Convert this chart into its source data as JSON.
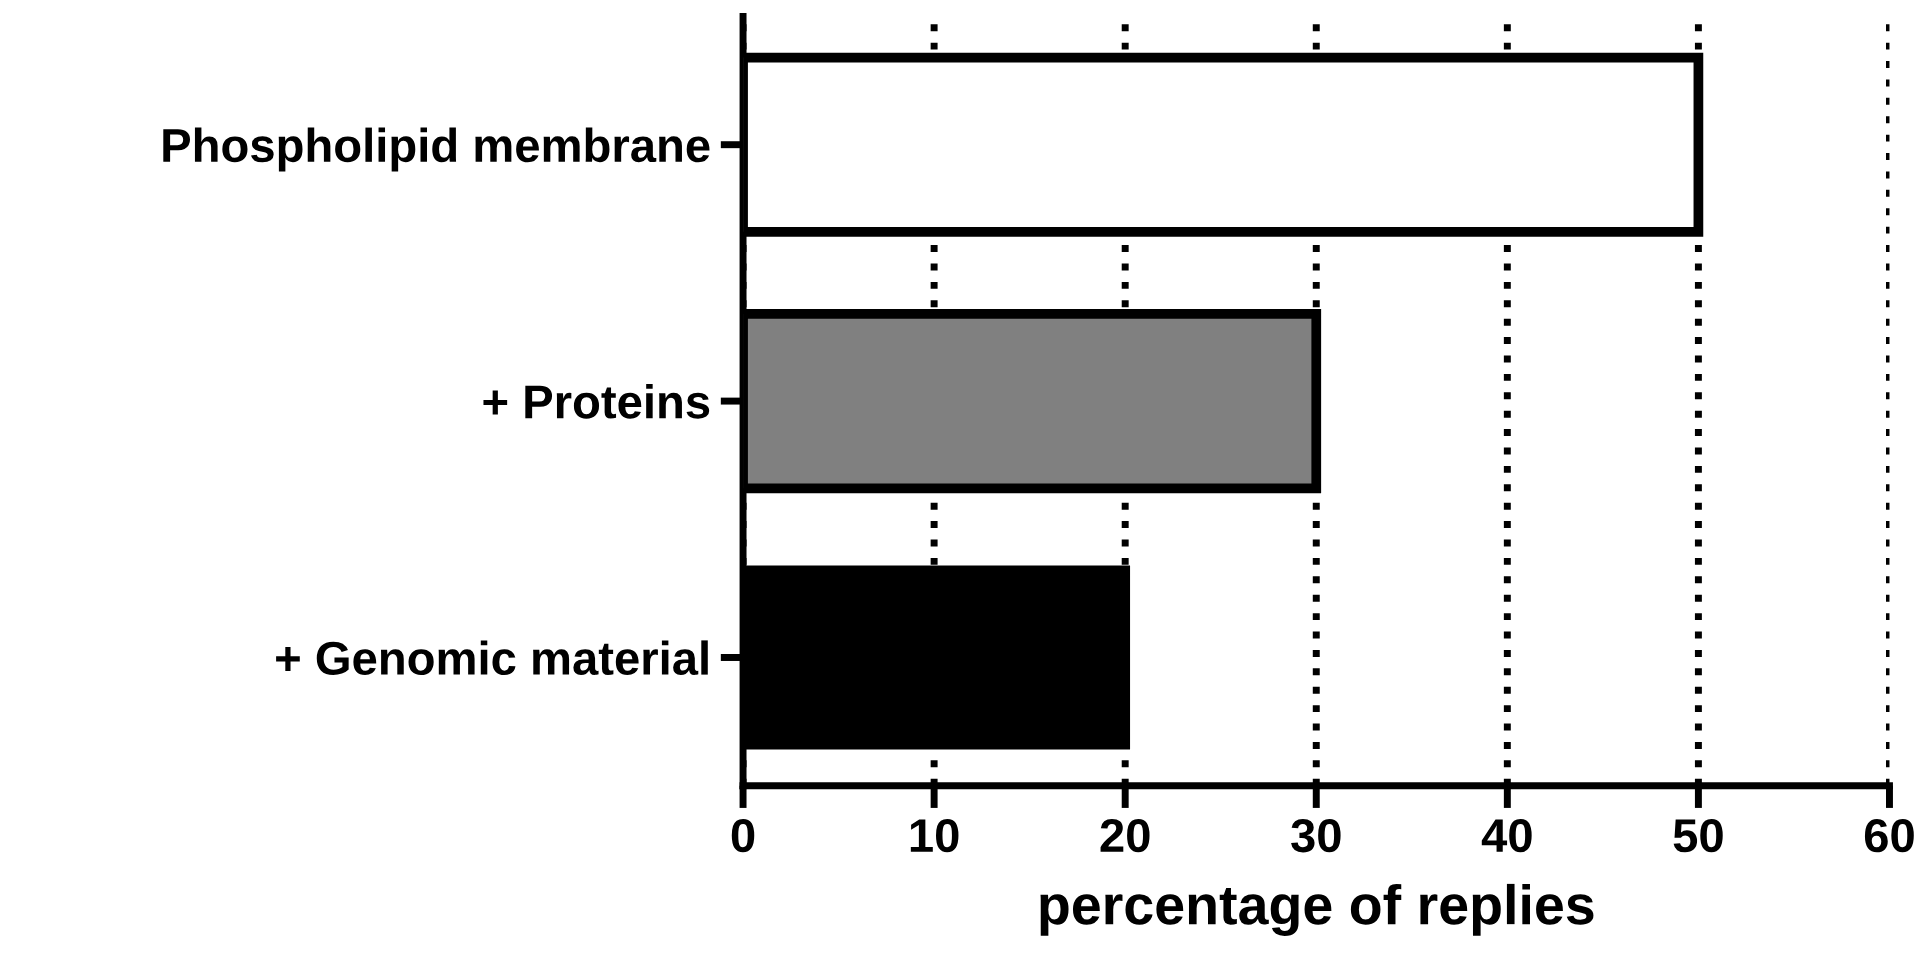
{
  "chart_data": {
    "type": "bar",
    "orientation": "horizontal",
    "xlabel": "percentage of replies",
    "categories": [
      "Phospholipid membrane",
      "+ Proteins",
      "+ Genomic material"
    ],
    "values": [
      50,
      30,
      20
    ],
    "colors": [
      "#ffffff",
      "#808080",
      "#000000"
    ],
    "xlim": [
      0,
      60
    ],
    "xticks": [
      0,
      10,
      20,
      30,
      40,
      50,
      60
    ],
    "grid": "x",
    "line_style": "dotted",
    "legend": false
  }
}
